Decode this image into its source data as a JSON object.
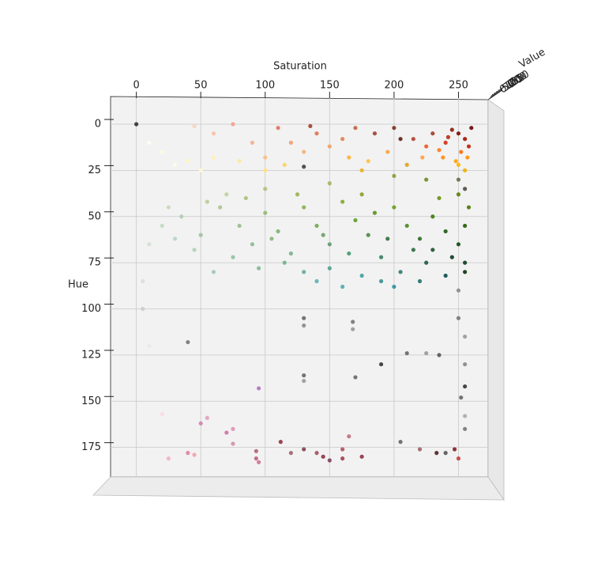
{
  "chart_data": {
    "type": "scatter",
    "xlabel": "Saturation",
    "ylabel": "Hue",
    "zlabel": "Value",
    "xlim": [
      -20,
      273
    ],
    "ylim": [
      -15,
      191
    ],
    "zlim": [
      0,
      255
    ],
    "xticks": [
      0,
      50,
      100,
      150,
      200,
      250
    ],
    "yticks": [
      0,
      25,
      50,
      75,
      100,
      125,
      150,
      175
    ],
    "zticks": [
      0,
      50,
      100,
      150,
      200,
      250
    ],
    "y_inverted": true,
    "grid": true,
    "x": [
      250,
      255,
      245,
      258,
      240,
      252,
      257,
      248,
      235,
      242,
      260,
      230,
      225,
      250,
      238,
      255,
      215,
      222,
      200,
      185,
      170,
      160,
      150,
      140,
      130,
      120,
      110,
      100,
      195,
      180,
      165,
      210,
      90,
      75,
      60,
      45,
      135,
      205,
      175,
      80,
      60,
      40,
      20,
      100,
      115,
      50,
      30,
      10,
      200,
      225,
      150,
      100,
      70,
      20,
      35,
      50,
      65,
      80,
      90,
      100,
      110,
      120,
      130,
      140,
      150,
      160,
      170,
      180,
      190,
      200,
      210,
      220,
      230,
      240,
      250,
      255,
      258,
      245,
      235,
      225,
      215,
      205,
      190,
      175,
      160,
      150,
      140,
      200,
      220,
      240,
      255,
      130,
      115,
      95,
      75,
      60,
      45,
      30,
      10,
      25,
      55,
      85,
      125,
      175,
      250,
      255,
      185,
      165,
      145,
      105,
      195,
      230,
      250,
      255,
      0,
      130,
      250,
      250,
      255,
      235,
      255,
      255,
      252,
      255,
      255,
      240,
      130,
      130,
      130,
      130,
      168,
      168,
      170,
      190,
      210,
      225,
      40,
      5,
      5,
      10,
      95,
      50,
      55,
      70,
      75,
      20,
      25,
      40,
      45,
      75,
      93,
      93,
      95,
      112,
      120,
      130,
      140,
      145,
      150,
      160,
      160,
      165,
      175,
      205,
      220,
      233,
      250,
      247
    ],
    "values": [
      5,
      8,
      3,
      12,
      10,
      15,
      18,
      20,
      14,
      7,
      2,
      5,
      12,
      22,
      18,
      25,
      8,
      18,
      2,
      5,
      2,
      8,
      12,
      5,
      15,
      10,
      2,
      18,
      15,
      20,
      18,
      22,
      10,
      0,
      5,
      1,
      1,
      8,
      25,
      20,
      18,
      20,
      15,
      25,
      22,
      25,
      22,
      10,
      28,
      30,
      32,
      35,
      38,
      55,
      50,
      60,
      45,
      55,
      65,
      48,
      58,
      70,
      45,
      55,
      65,
      42,
      52,
      60,
      72,
      45,
      55,
      62,
      50,
      58,
      65,
      55,
      45,
      72,
      40,
      75,
      68,
      80,
      85,
      82,
      88,
      78,
      85,
      88,
      85,
      82,
      75,
      80,
      75,
      78,
      72,
      80,
      68,
      62,
      65,
      45,
      42,
      40,
      38,
      38,
      38,
      80,
      48,
      70,
      60,
      62,
      62,
      68,
      30,
      35,
      0,
      23,
      90,
      105,
      115,
      125,
      130,
      142,
      148,
      158,
      165,
      178,
      105,
      109,
      136,
      139,
      107,
      111,
      137,
      130,
      124,
      124,
      118,
      85,
      100,
      120,
      143,
      162,
      159,
      167,
      165,
      157,
      181,
      178,
      179,
      173,
      177,
      181,
      183,
      172,
      178,
      176,
      178,
      180,
      182,
      176,
      181,
      169,
      180,
      172,
      176,
      178,
      181,
      176
    ],
    "colors": [
      "#7a0a00",
      "#a01000",
      "#8b1a0a",
      "#c02000",
      "#d03010",
      "#ff6a00",
      "#ff9000",
      "#ffa000",
      "#ff7a1a",
      "#b82a10",
      "#6a0000",
      "#a03a2a",
      "#e85a20",
      "#ffb400",
      "#ff8a10",
      "#f0b000",
      "#b04030",
      "#ffa040",
      "#7a3020",
      "#a04030",
      "#c06040",
      "#e08050",
      "#f0a060",
      "#e07050",
      "#f4b070",
      "#f0a070",
      "#e07060",
      "#f8c080",
      "#ffa040",
      "#ffc040",
      "#ffb030",
      "#e0a020",
      "#f0b090",
      "#f0a090",
      "#f8c0a0",
      "#f8d0c0",
      "#a04030",
      "#5a2010",
      "#e8b020",
      "#fce8a0",
      "#fff0b0",
      "#fff4c0",
      "#fffae0",
      "#ffe080",
      "#ffd060",
      "#fff8d0",
      "#fffbe8",
      "#fffdf4",
      "#8a9a3a",
      "#6a8a20",
      "#a8b060",
      "#b0c080",
      "#c0d0a0",
      "#c0d8c0",
      "#b0ccb0",
      "#a0c0a0",
      "#a8c490",
      "#98bc88",
      "#88b890",
      "#90b870",
      "#80b070",
      "#78b088",
      "#88b050",
      "#70a850",
      "#609870",
      "#80a830",
      "#609a30",
      "#4a8a40",
      "#3a8060",
      "#6a9a20",
      "#4a8a20",
      "#2a6a20",
      "#3a7a10",
      "#1a5a10",
      "#0a4a10",
      "#205a00",
      "#4a7a00",
      "#0a3a20",
      "#6a9010",
      "#1a5a40",
      "#2a6a40",
      "#2a7a70",
      "#3a9090",
      "#40a0a0",
      "#50a8b0",
      "#50a090",
      "#60b0b0",
      "#3090a0",
      "#207070",
      "#0a4a4a",
      "#0a3a20",
      "#60a898",
      "#70b090",
      "#80b898",
      "#90c0a0",
      "#a0c8b0",
      "#b0d0b8",
      "#b8d4c0",
      "#d0e0d0",
      "#c8d8b8",
      "#b8cc98",
      "#a8c078",
      "#98b050",
      "#88a028",
      "#5a8000",
      "#0a3010",
      "#5a9020",
      "#409a70",
      "#68a060",
      "#88b478",
      "#30703a",
      "#1a5230",
      "#6a6a50",
      "#504a40",
      "#303030",
      "#404040",
      "#888888",
      "#777777",
      "#999999",
      "#555555",
      "#888888",
      "#333333",
      "#666666",
      "#aaaaaa",
      "#777777",
      "#555555",
      "#666666",
      "#888888",
      "#666666",
      "#999999",
      "#777777",
      "#999999",
      "#666666",
      "#333333",
      "#666666",
      "#999999",
      "#777777",
      "#dddddd",
      "#cccccc",
      "#e8e8e8",
      "#b070c0",
      "#d080b0",
      "#e0a0c0",
      "#d070a0",
      "#e090b0",
      "#f8d8e8",
      "#f0b0c8",
      "#e080a0",
      "#f0a0b0",
      "#d090a0",
      "#b06070",
      "#c06080",
      "#d07090",
      "#903040",
      "#a06070",
      "#804050",
      "#a05060",
      "#903040",
      "#804060",
      "#b05060",
      "#a04050",
      "#c07080",
      "#903040",
      "#666666",
      "#a06060",
      "#502020",
      "#c04040",
      "#802020"
    ]
  }
}
